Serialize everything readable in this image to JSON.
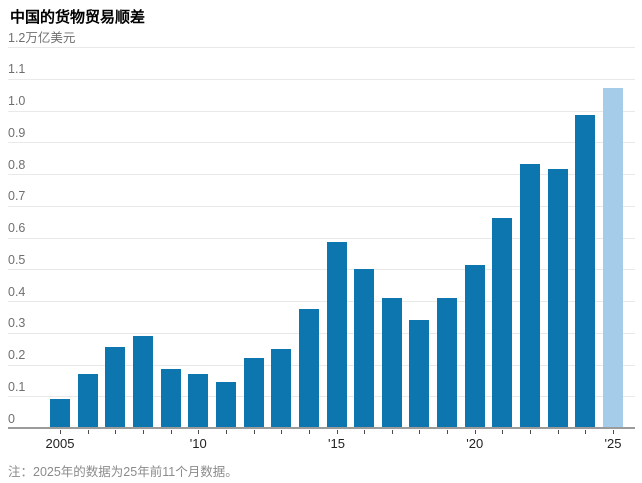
{
  "title": "中国的货物贸易顺差",
  "note": "注：2025年的数据为25年前11个月数据。",
  "chart_data": {
    "type": "bar",
    "title": "中国的货物贸易顺差",
    "unit": "万亿美元",
    "categories": [
      2005,
      2006,
      2007,
      2008,
      2009,
      2010,
      2011,
      2012,
      2013,
      2014,
      2015,
      2016,
      2017,
      2018,
      2019,
      2020,
      2021,
      2022,
      2023,
      2024,
      2025
    ],
    "values": [
      0.09,
      0.17,
      0.255,
      0.29,
      0.185,
      0.17,
      0.145,
      0.22,
      0.25,
      0.375,
      0.585,
      0.5,
      0.41,
      0.34,
      0.41,
      0.515,
      0.66,
      0.83,
      0.815,
      0.985,
      1.07
    ],
    "highlight_index": 20,
    "ylim": [
      0,
      1.2
    ],
    "grid": "horizontal",
    "legend": "none",
    "yticks": [
      {
        "v": 0,
        "label": "0"
      },
      {
        "v": 0.1,
        "label": "0.1"
      },
      {
        "v": 0.2,
        "label": "0.2"
      },
      {
        "v": 0.3,
        "label": "0.3"
      },
      {
        "v": 0.4,
        "label": "0.4"
      },
      {
        "v": 0.5,
        "label": "0.5"
      },
      {
        "v": 0.6,
        "label": "0.6"
      },
      {
        "v": 0.7,
        "label": "0.7"
      },
      {
        "v": 0.8,
        "label": "0.8"
      },
      {
        "v": 0.9,
        "label": "0.9"
      },
      {
        "v": 1.0,
        "label": "1.0"
      },
      {
        "v": 1.1,
        "label": "1.1"
      },
      {
        "v": 1.2,
        "label": "1.2万亿美元"
      }
    ],
    "xticks": [
      {
        "index": 0,
        "label": "2005"
      },
      {
        "index": 5,
        "label": "'10"
      },
      {
        "index": 10,
        "label": "'15"
      },
      {
        "index": 15,
        "label": "'20"
      },
      {
        "index": 20,
        "label": "'25"
      }
    ],
    "colors": {
      "bar": "#0e76ae",
      "bar_highlight": "#a5cce9",
      "gridline": "#e9e9e9",
      "axis_line": "#9b9b9b"
    }
  }
}
